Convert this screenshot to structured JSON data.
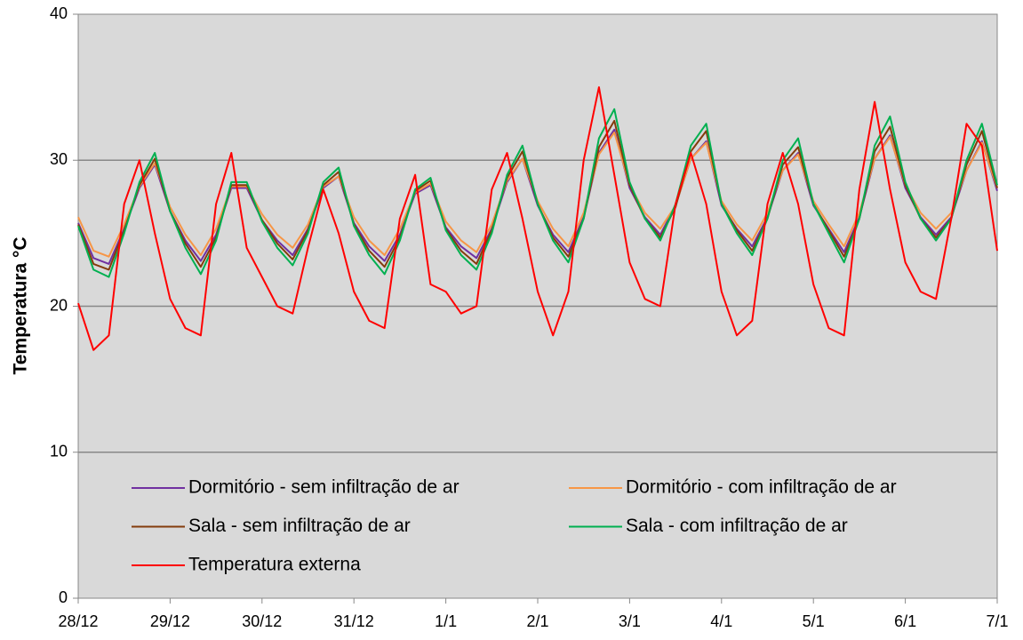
{
  "chart_data": {
    "type": "line",
    "y_label": "Temperatura °C",
    "categories": [
      "28/12",
      null,
      null,
      null,
      null,
      null,
      "29/12",
      null,
      null,
      null,
      null,
      null,
      "30/12",
      null,
      null,
      null,
      null,
      null,
      "31/12",
      null,
      null,
      null,
      null,
      null,
      "1/1",
      null,
      null,
      null,
      null,
      null,
      "2/1",
      null,
      null,
      null,
      null,
      null,
      "3/1",
      null,
      null,
      null,
      null,
      null,
      "4/1",
      null,
      null,
      null,
      null,
      null,
      "5/1",
      null,
      null,
      null,
      null,
      null,
      "6/1",
      null,
      null,
      null,
      null,
      null,
      "7/1"
    ],
    "ylim": [
      0,
      40
    ],
    "yticks": [
      0,
      10,
      20,
      30,
      40
    ],
    "grid": true,
    "legend": "lower-left",
    "series": [
      {
        "name": "Dormitório - sem infiltração de ar",
        "color": "#7030a0",
        "values": [
          25.7,
          23.3,
          22.9,
          25.3,
          28.1,
          29.7,
          26.5,
          24.5,
          23.1,
          24.9,
          28.1,
          28.1,
          25.9,
          24.5,
          23.5,
          25.3,
          28.1,
          28.9,
          25.7,
          24.1,
          23.1,
          24.9,
          27.7,
          28.3,
          25.4,
          24.1,
          23.3,
          25.3,
          28.5,
          30.1,
          26.9,
          24.9,
          23.7,
          26.1,
          30.5,
          32.1,
          28.1,
          26.1,
          24.9,
          26.9,
          30.1,
          31.3,
          26.9,
          25.3,
          24.1,
          26.1,
          29.3,
          30.5,
          26.9,
          25.3,
          23.7,
          26.1,
          30.1,
          31.7,
          28.1,
          26.1,
          24.9,
          26.1,
          29.3,
          31.3,
          27.9
        ]
      },
      {
        "name": "Dormitório - com infiltração de ar",
        "color": "#f79646",
        "values": [
          26.1,
          23.8,
          23.4,
          25.6,
          28.2,
          29.8,
          26.8,
          24.9,
          23.5,
          25.3,
          28.2,
          28.2,
          26.3,
          24.9,
          24,
          25.6,
          28.2,
          28.9,
          26.1,
          24.5,
          23.5,
          25.3,
          27.8,
          28.4,
          25.8,
          24.5,
          23.7,
          25.6,
          28.6,
          30.1,
          27.2,
          25.3,
          24.1,
          26.4,
          30.4,
          31.9,
          28.3,
          26.4,
          25.3,
          26.9,
          30.1,
          31.2,
          27.2,
          25.6,
          24.5,
          26.4,
          29.3,
          30.4,
          27.2,
          25.6,
          24.1,
          26.4,
          30.1,
          31.6,
          28.3,
          26.4,
          25.3,
          26.4,
          29.3,
          31.2,
          28.1
        ]
      },
      {
        "name": "Sala - sem infiltração de ar",
        "color": "#843c0c",
        "values": [
          25.6,
          22.9,
          22.5,
          25.2,
          28.3,
          30.1,
          26.5,
          24.3,
          22.7,
          24.7,
          28.3,
          28.3,
          25.9,
          24.3,
          23.2,
          25.2,
          28.3,
          29.2,
          25.6,
          23.8,
          22.7,
          24.7,
          27.9,
          28.6,
          25.3,
          23.8,
          22.9,
          25.2,
          28.8,
          30.6,
          27,
          24.7,
          23.4,
          26,
          30.9,
          32.7,
          28.3,
          26,
          24.7,
          26.8,
          30.6,
          32,
          27,
          25.2,
          23.8,
          26,
          29.7,
          30.9,
          27,
          25.2,
          23.4,
          26,
          30.6,
          32.3,
          28.3,
          26,
          24.7,
          26,
          29.7,
          32,
          28.1
        ]
      },
      {
        "name": "Sala - com infiltração de ar",
        "color": "#00b050",
        "values": [
          25.5,
          22.5,
          22,
          25,
          28.5,
          30.5,
          26.5,
          24,
          22.2,
          24.5,
          28.5,
          28.5,
          25.8,
          24,
          22.8,
          25,
          28.5,
          29.5,
          25.5,
          23.5,
          22.2,
          24.5,
          28,
          28.8,
          25.2,
          23.5,
          22.5,
          25,
          29,
          31,
          27,
          24.5,
          23,
          26,
          31.5,
          33.5,
          28.5,
          26,
          24.5,
          27,
          31,
          32.5,
          27,
          25,
          23.5,
          26,
          30,
          31.5,
          27,
          25,
          23,
          26,
          31,
          33,
          28.5,
          26,
          24.5,
          26,
          30,
          32.5,
          28.3
        ]
      },
      {
        "name": "Temperatura externa",
        "color": "#ff0000",
        "values": [
          20.2,
          17,
          18,
          27,
          30,
          25,
          20.5,
          18.5,
          18,
          27,
          30.5,
          24,
          22,
          20,
          19.5,
          24,
          28,
          25,
          21,
          19,
          18.5,
          26,
          29,
          21.5,
          21,
          19.5,
          20,
          28,
          30.5,
          26,
          21,
          18,
          21,
          30,
          35,
          29,
          23,
          20.5,
          20,
          27,
          30.5,
          27,
          21,
          18,
          19,
          27,
          30.5,
          27,
          21.5,
          18.5,
          18,
          28,
          34,
          28,
          23,
          21,
          20.5,
          26,
          32.5,
          31,
          23.8
        ]
      }
    ]
  }
}
